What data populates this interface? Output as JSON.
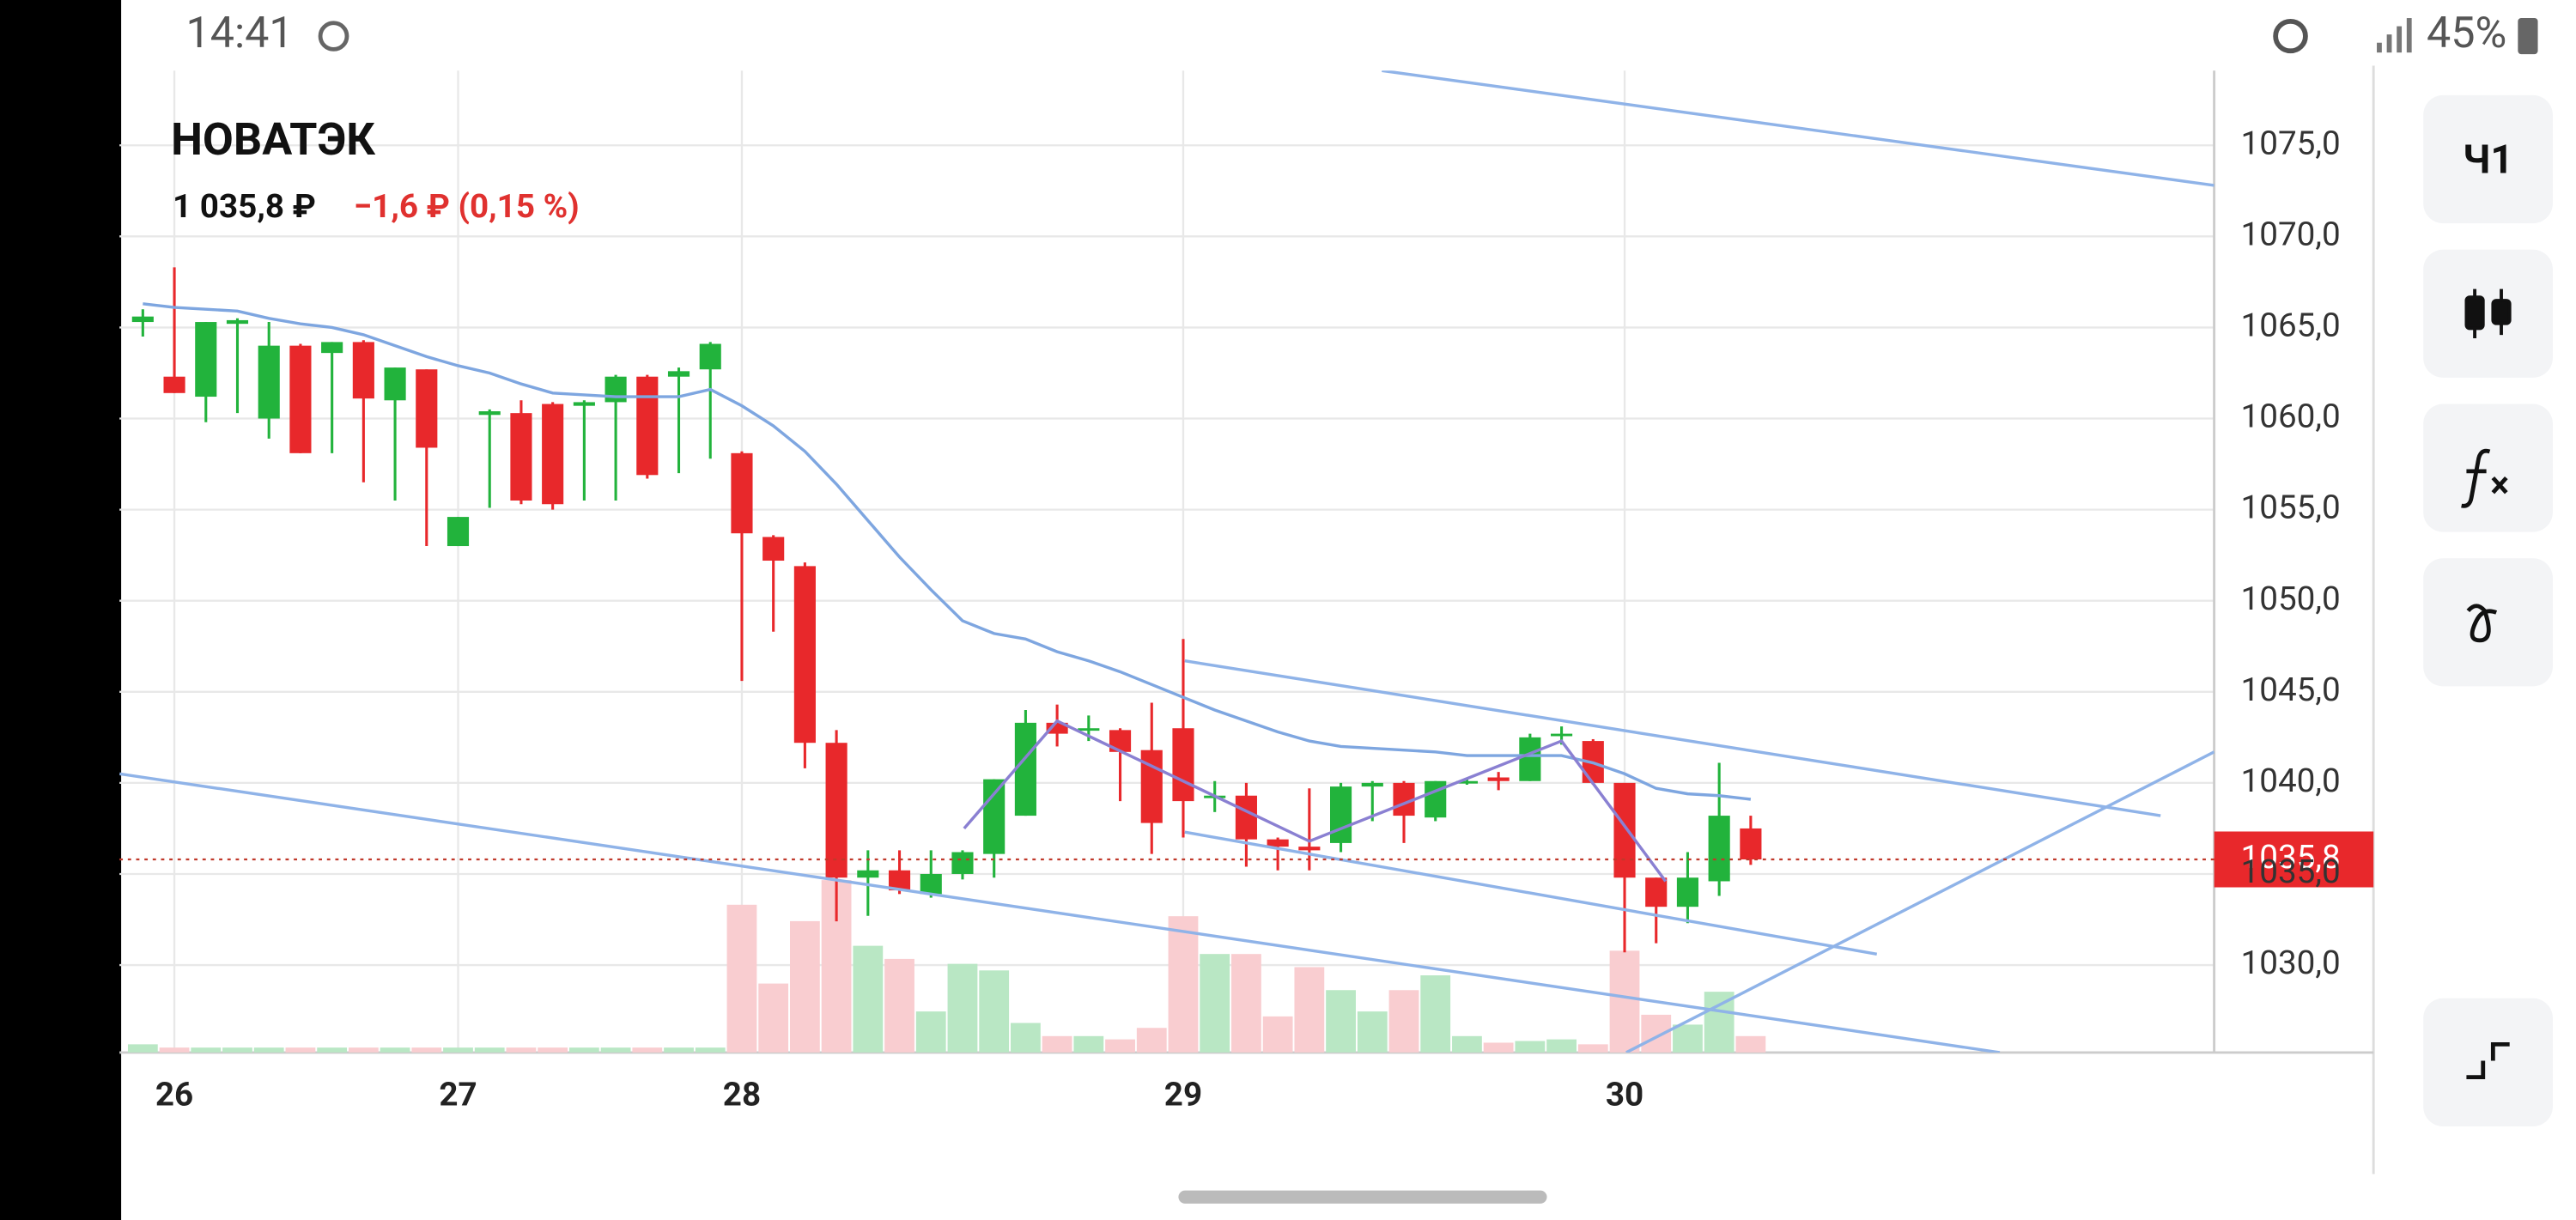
{
  "status_bar": {
    "time": "14:41",
    "battery": "45%"
  },
  "side_buttons": {
    "interval": "Ч1"
  },
  "chart_data": {
    "type": "candlestick",
    "title": "НОВАТЭК",
    "price": "1 035,8 ₽",
    "change": "−1,6 ₽ (0,15 %)",
    "up_color": "#22b33c",
    "down_color": "#e8282b",
    "volume_up_color": "#b9e7c4",
    "volume_down_color": "#f9cdd0",
    "ma_color": "#7ea6e0",
    "grid": true,
    "xlim": [
      -0.74,
      65.7
    ],
    "ylim": [
      1025.2,
      1079.1
    ],
    "xticks": [
      {
        "value": 1,
        "label": "26"
      },
      {
        "value": 10,
        "label": "27"
      },
      {
        "value": 19,
        "label": "28"
      },
      {
        "value": 33,
        "label": "29"
      },
      {
        "value": 47,
        "label": "30"
      }
    ],
    "yticks": [
      {
        "value": 1030,
        "label": "1030,0"
      },
      {
        "value": 1035,
        "label": "1035,0"
      },
      {
        "value": 1040,
        "label": "1040,0"
      },
      {
        "value": 1045,
        "label": "1045,0"
      },
      {
        "value": 1050,
        "label": "1050,0"
      },
      {
        "value": 1055,
        "label": "1055,0"
      },
      {
        "value": 1060,
        "label": "1060,0"
      },
      {
        "value": 1065,
        "label": "1065,0"
      },
      {
        "value": 1070,
        "label": "1070,0"
      },
      {
        "value": 1075,
        "label": "1075,0"
      }
    ],
    "last_price": {
      "value": 1035.8,
      "label": "1035,8"
    },
    "open": [
      1065.3,
      1062.3,
      1061.2,
      1065.2,
      1060,
      1064,
      1063.6,
      1064.2,
      1061,
      1062.7,
      1053,
      1060.2,
      1060.3,
      1060.8,
      1060.7,
      1060.9,
      1062.3,
      1062.3,
      1062.7,
      1058.1,
      1053.5,
      1051.9,
      1042.2,
      1034.8,
      1035.2,
      1033.9,
      1035,
      1036.1,
      1038.2,
      1043.3,
      1042.9,
      1042.9,
      1041.8,
      1043,
      1039.2,
      1039.3,
      1036.9,
      1036.5,
      1036.7,
      1039.8,
      1040,
      1038.1,
      1040,
      1040.3,
      1040.1,
      1042.6,
      1042.3,
      1040,
      1034.8,
      1033.2,
      1034.6,
      1037.5
    ],
    "high": [
      1066,
      1068.3,
      1065.3,
      1065.5,
      1065.3,
      1064.1,
      1064.2,
      1064.3,
      1062.8,
      1062.7,
      1054.6,
      1060.5,
      1061,
      1060.9,
      1061,
      1062.4,
      1062.4,
      1062.8,
      1064.2,
      1058.2,
      1053.6,
      1052.1,
      1042.9,
      1036.3,
      1036.3,
      1036.3,
      1036.3,
      1040.2,
      1044,
      1044.3,
      1043.7,
      1043,
      1044.4,
      1047.9,
      1040.1,
      1040,
      1037,
      1039.7,
      1040,
      1040.1,
      1040.1,
      1040.1,
      1040.2,
      1040.6,
      1042.7,
      1043.1,
      1042.4,
      1040,
      1034.8,
      1036.2,
      1041.1,
      1038.2
    ],
    "low": [
      1064.5,
      1061.4,
      1059.8,
      1060.3,
      1058.9,
      1058.1,
      1058.1,
      1056.5,
      1055.5,
      1053,
      1053,
      1055.1,
      1055.3,
      1055,
      1055.5,
      1055.5,
      1056.7,
      1057,
      1057.8,
      1045.6,
      1048.3,
      1040.8,
      1032.4,
      1032.7,
      1033.9,
      1033.7,
      1034.7,
      1034.8,
      1038.2,
      1042,
      1042.3,
      1039,
      1036.1,
      1037,
      1038.4,
      1035.4,
      1035.2,
      1035.2,
      1036.2,
      1037.9,
      1036.7,
      1037.9,
      1039.9,
      1039.6,
      1040.1,
      1042.1,
      1039.9,
      1030.7,
      1031.2,
      1032.3,
      1033.8,
      1035.5
    ],
    "close": [
      1065.6,
      1061.4,
      1065.3,
      1065.4,
      1064,
      1058.1,
      1064.2,
      1061.1,
      1062.8,
      1058.4,
      1054.6,
      1060.4,
      1055.5,
      1055.3,
      1060.9,
      1062.3,
      1056.9,
      1062.6,
      1064.1,
      1053.7,
      1052.2,
      1042.2,
      1034.8,
      1035.2,
      1034.1,
      1035,
      1036.2,
      1040.2,
      1043.3,
      1042.7,
      1043,
      1041.7,
      1037.8,
      1039,
      1039.3,
      1036.9,
      1036.5,
      1036.3,
      1039.8,
      1040,
      1038.2,
      1040.1,
      1040.1,
      1040.1,
      1042.5,
      1042.7,
      1040,
      1034.8,
      1033.2,
      1034.8,
      1038.2,
      1035.8
    ],
    "volume": [
      5,
      3,
      3,
      3,
      3,
      3,
      3,
      3,
      3,
      3,
      3,
      3,
      3,
      3,
      3,
      3,
      3,
      3,
      3,
      90,
      42,
      80,
      105,
      65,
      57,
      25,
      54,
      50,
      18,
      10,
      10,
      8,
      15,
      83,
      60,
      60,
      22,
      52,
      38,
      25,
      38,
      47,
      10,
      6,
      7,
      8,
      5,
      62,
      23,
      17,
      37,
      10
    ],
    "ma": [
      1066.3,
      1066.1,
      1066,
      1065.9,
      1065.5,
      1065.2,
      1065,
      1064.6,
      1064,
      1063.4,
      1062.9,
      1062.5,
      1061.9,
      1061.4,
      1061.3,
      1061.2,
      1061.2,
      1061.2,
      1061.6,
      1060.7,
      1059.6,
      1058.2,
      1056.4,
      1054.4,
      1052.4,
      1050.6,
      1048.9,
      1048.2,
      1047.9,
      1047.2,
      1046.7,
      1046.1,
      1045.4,
      1044.7,
      1044,
      1043.4,
      1042.8,
      1042.3,
      1042,
      1041.9,
      1041.8,
      1041.7,
      1041.5,
      1041.5,
      1041.5,
      1041.5,
      1041.1,
      1040.5,
      1039.7,
      1039.4,
      1039.3,
      1039.1
    ],
    "drawings": [
      {
        "color": "#8fb3e8",
        "x": [
          39.3,
          65.7
        ],
        "y": [
          1079.1,
          1072.8
        ]
      },
      {
        "color": "#8fb3e8",
        "x": [
          -0.74,
          58.9
        ],
        "y": [
          1040.5,
          1025.2
        ]
      },
      {
        "color": "#8fb3e8",
        "x": [
          33.05,
          64
        ],
        "y": [
          1046.7,
          1038.2
        ]
      },
      {
        "color": "#8fb3e8",
        "x": [
          33.05,
          55
        ],
        "y": [
          1037.3,
          1030.6
        ]
      },
      {
        "color": "#8fb3e8",
        "x": [
          47.05,
          65.7
        ],
        "y": [
          1025.2,
          1041.7
        ]
      },
      {
        "color": "#8a80d2",
        "x": [
          26.05,
          29,
          37,
          45,
          48.3
        ],
        "y": [
          1037.5,
          1043.4,
          1036.8,
          1042.3,
          1034.6
        ]
      }
    ]
  }
}
